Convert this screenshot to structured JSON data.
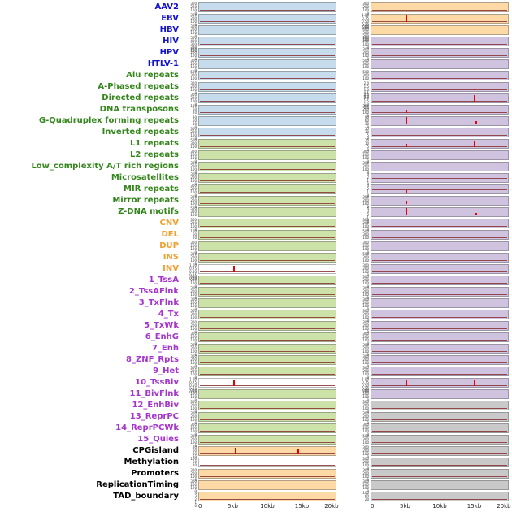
{
  "colors": {
    "label": {
      "blue": "#1414cf",
      "green": "#35871d",
      "orange": "#f09f2e",
      "purple": "#a435cd",
      "black": "#000000"
    },
    "panel": {
      "blue": "#c6dcec",
      "green": "#cde2a9",
      "orange": "#fdd9a6",
      "purple": "#d0c3e0",
      "gray": "#c9c9c9",
      "white": "#ffffff"
    },
    "spike": "#e80000",
    "baseline": "#8a3033"
  },
  "chart_data": {
    "type": "line",
    "title": "",
    "xlabel": "",
    "ylabel": "",
    "x_ticks": [
      "0",
      "5kb",
      "10kb",
      "15kb",
      "20kb"
    ],
    "x_tick_positions": [
      0,
      25,
      50,
      75,
      100
    ],
    "default_yticks": [
      "300",
      "200",
      "100",
      "0"
    ],
    "default_baseline": 0.75,
    "rows": [
      {
        "label": "AAV2",
        "c": "blue",
        "L": {
          "bg": "blue"
        },
        "R": {
          "bg": "orange"
        }
      },
      {
        "label": "EBV",
        "c": "blue",
        "L": {
          "bg": "blue"
        },
        "R": {
          "bg": "orange",
          "yt": [
            "1.00",
            "0.75",
            "0.50",
            "0.25",
            "0.00"
          ],
          "sp": [
            {
              "x": 0.25,
              "h": 0.85
            }
          ]
        }
      },
      {
        "label": "HBV",
        "c": "blue",
        "L": {
          "bg": "blue"
        },
        "R": {
          "bg": "orange",
          "yt": [
            "500",
            "400",
            "300",
            "200",
            "100"
          ]
        }
      },
      {
        "label": "HIV",
        "c": "blue",
        "L": {
          "bg": "blue",
          "yt": [
            "500",
            "400",
            "300",
            "200",
            "100"
          ]
        },
        "R": {
          "bg": "purple"
        }
      },
      {
        "label": "HPV",
        "c": "blue",
        "L": {
          "bg": "blue"
        },
        "R": {
          "bg": "purple"
        }
      },
      {
        "label": "HTLV-1",
        "c": "blue",
        "L": {
          "bg": "blue"
        },
        "R": {
          "bg": "purple",
          "yt": [
            "500",
            "300",
            "100"
          ]
        }
      },
      {
        "label": "Alu repeats",
        "c": "green",
        "L": {
          "bg": "blue",
          "yt": [
            "500",
            "300",
            "100"
          ]
        },
        "R": {
          "bg": "purple",
          "yt": [
            "500",
            "300",
            "100"
          ]
        }
      },
      {
        "label": "A-Phased repeats",
        "c": "green",
        "L": {
          "bg": "blue"
        },
        "R": {
          "bg": "purple",
          "yt": [
            "2.0",
            "1.5",
            "1.0",
            "0.5",
            "0.0"
          ],
          "sp": [
            {
              "x": 0.75,
              "h": 0.25
            }
          ]
        }
      },
      {
        "label": "Directed repeats",
        "c": "green",
        "L": {
          "bg": "blue"
        },
        "R": {
          "bg": "purple",
          "yt": [
            "2.5",
            "2.0",
            "1.5",
            "1.0",
            "0.5"
          ],
          "sp": [
            {
              "x": 0.75,
              "h": 0.9
            }
          ]
        }
      },
      {
        "label": "DNA transposons",
        "c": "green",
        "L": {
          "bg": "blue",
          "yt": [
            "100",
            "60",
            "20"
          ]
        },
        "R": {
          "bg": "purple",
          "sp": [
            {
              "x": 0.25,
              "h": 0.45
            }
          ]
        }
      },
      {
        "label": "G-Quadruplex forming repeats",
        "c": "green",
        "L": {
          "bg": "blue",
          "yt": [
            "90",
            "60",
            "30",
            "0"
          ]
        },
        "R": {
          "bg": "purple",
          "yt": [
            "90",
            "60",
            "30",
            "0"
          ],
          "sp": [
            {
              "x": 0.25,
              "h": 0.95
            },
            {
              "x": 0.76,
              "h": 0.5
            }
          ]
        }
      },
      {
        "label": "Inverted repeats",
        "c": "green",
        "L": {
          "bg": "blue"
        },
        "R": {
          "bg": "purple",
          "yt": [
            "15",
            "10",
            "5",
            "0"
          ]
        }
      },
      {
        "label": "L1 repeats",
        "c": "green",
        "L": {
          "bg": "green",
          "yt": [
            "500",
            "300",
            "100"
          ]
        },
        "R": {
          "bg": "purple",
          "yt": [
            "15",
            "10",
            "5",
            "0"
          ],
          "sp": [
            {
              "x": 0.25,
              "h": 0.5
            },
            {
              "x": 0.75,
              "h": 0.85
            }
          ]
        }
      },
      {
        "label": "L2 repeats",
        "c": "green",
        "L": {
          "bg": "green"
        },
        "R": {
          "bg": "purple"
        }
      },
      {
        "label": "Low_complexity A/T rich regions",
        "c": "green",
        "L": {
          "bg": "green"
        },
        "R": {
          "bg": "purple",
          "bl": 0.45
        }
      },
      {
        "label": "Microsatellites",
        "c": "green",
        "L": {
          "bg": "green"
        },
        "R": {
          "bg": "purple",
          "bl": 0.5,
          "yt": [
            "3",
            "2",
            "1",
            "0"
          ]
        }
      },
      {
        "label": "MIR repeats",
        "c": "green",
        "L": {
          "bg": "green"
        },
        "R": {
          "bg": "purple",
          "bl": 0.5,
          "yt": [
            "3",
            "2",
            "1",
            "0"
          ],
          "sp": [
            {
              "x": 0.25,
              "h": 0.3
            }
          ]
        }
      },
      {
        "label": "Mirror repeats",
        "c": "green",
        "L": {
          "bg": "green"
        },
        "R": {
          "bg": "purple",
          "bl": 0.55,
          "sp": [
            {
              "x": 0.25,
              "h": 0.5
            }
          ]
        }
      },
      {
        "label": "Z-DNA motifs",
        "c": "green",
        "L": {
          "bg": "green",
          "yt": [
            "500",
            "300",
            "100"
          ]
        },
        "R": {
          "bg": "purple",
          "yt": [
            "4",
            "3",
            "2",
            "1",
            "0"
          ],
          "sp": [
            {
              "x": 0.25,
              "h": 0.95
            },
            {
              "x": 0.76,
              "h": 0.3
            }
          ]
        }
      },
      {
        "label": "CNV",
        "c": "orange",
        "L": {
          "bg": "green"
        },
        "R": {
          "bg": "purple"
        }
      },
      {
        "label": "DEL",
        "c": "orange",
        "L": {
          "bg": "green",
          "yt": [
            "100",
            "60",
            "20"
          ]
        },
        "R": {
          "bg": "purple",
          "yt": [
            "500",
            "300",
            "100"
          ]
        }
      },
      {
        "label": "DUP",
        "c": "orange",
        "L": {
          "bg": "green"
        },
        "R": {
          "bg": "purple"
        }
      },
      {
        "label": "INS",
        "c": "orange",
        "L": {
          "bg": "green"
        },
        "R": {
          "bg": "purple",
          "yt": [
            "500",
            "300",
            "100"
          ]
        }
      },
      {
        "label": "INV",
        "c": "orange",
        "L": {
          "bg": "white",
          "yt": [
            "1.00",
            "0.75",
            "0.50",
            "0.25",
            "0.00"
          ],
          "sp": [
            {
              "x": 0.25,
              "h": 0.9
            }
          ]
        },
        "R": {
          "bg": "purple",
          "yt": [
            "300",
            "200",
            "100",
            "0"
          ]
        }
      },
      {
        "label": "1_TssA",
        "c": "purple",
        "L": {
          "bg": "green"
        },
        "R": {
          "bg": "purple"
        }
      },
      {
        "label": "2_TssAFlnk",
        "c": "purple",
        "L": {
          "bg": "green"
        },
        "R": {
          "bg": "purple"
        }
      },
      {
        "label": "3_TxFlnk",
        "c": "purple",
        "L": {
          "bg": "green"
        },
        "R": {
          "bg": "purple"
        }
      },
      {
        "label": "4_Tx",
        "c": "purple",
        "L": {
          "bg": "green",
          "yt": [
            "500",
            "300",
            "100"
          ]
        },
        "R": {
          "bg": "purple"
        }
      },
      {
        "label": "5_TxWk",
        "c": "purple",
        "L": {
          "bg": "green"
        },
        "R": {
          "bg": "purple"
        }
      },
      {
        "label": "6_EnhG",
        "c": "purple",
        "L": {
          "bg": "green"
        },
        "R": {
          "bg": "purple"
        }
      },
      {
        "label": "7_Enh",
        "c": "purple",
        "L": {
          "bg": "green"
        },
        "R": {
          "bg": "purple"
        }
      },
      {
        "label": "8_ZNF_Rpts",
        "c": "purple",
        "L": {
          "bg": "green"
        },
        "R": {
          "bg": "purple"
        }
      },
      {
        "label": "9_Het",
        "c": "purple",
        "L": {
          "bg": "green"
        },
        "R": {
          "bg": "purple"
        }
      },
      {
        "label": "10_TssBiv",
        "c": "purple",
        "L": {
          "bg": "white",
          "yt": [
            "1.00",
            "0.75",
            "0.50",
            "0.25",
            "0.00"
          ],
          "sp": [
            {
              "x": 0.25,
              "h": 0.9
            }
          ]
        },
        "R": {
          "bg": "purple",
          "yt": [
            "1.00",
            "0.75",
            "0.50",
            "0.25",
            "0.00"
          ],
          "sp": [
            {
              "x": 0.25,
              "h": 0.85
            },
            {
              "x": 0.75,
              "h": 0.8
            }
          ]
        }
      },
      {
        "label": "11_BivFlnk",
        "c": "purple",
        "L": {
          "bg": "green"
        },
        "R": {
          "bg": "purple"
        }
      },
      {
        "label": "12_EnhBiv",
        "c": "purple",
        "L": {
          "bg": "green"
        },
        "R": {
          "bg": "gray"
        }
      },
      {
        "label": "13_ReprPC",
        "c": "purple",
        "L": {
          "bg": "green"
        },
        "R": {
          "bg": "gray"
        }
      },
      {
        "label": "14_ReprPCWk",
        "c": "purple",
        "L": {
          "bg": "green"
        },
        "R": {
          "bg": "gray"
        }
      },
      {
        "label": "15_Quies",
        "c": "purple",
        "L": {
          "bg": "green"
        },
        "R": {
          "bg": "gray",
          "yt": [
            "500",
            "300",
            "100"
          ]
        }
      },
      {
        "label": "CPGisland",
        "c": "black",
        "L": {
          "bg": "orange",
          "yt": [
            "80",
            "60",
            "40",
            "20"
          ],
          "sp": [
            {
              "x": 0.26,
              "h": 0.85
            },
            {
              "x": 0.72,
              "h": 0.8
            }
          ]
        },
        "R": {
          "bg": "gray",
          "yt": [
            "300",
            "200",
            "100",
            "0"
          ]
        }
      },
      {
        "label": "Methylation",
        "c": "black",
        "L": {
          "bg": "white",
          "yt": [
            "100",
            "60",
            "20"
          ]
        },
        "R": {
          "bg": "gray"
        }
      },
      {
        "label": "Promoters",
        "c": "black",
        "L": {
          "bg": "orange",
          "yt": [
            "300",
            "200",
            "100",
            "0"
          ]
        },
        "R": {
          "bg": "gray"
        }
      },
      {
        "label": "ReplicationTiming",
        "c": "black",
        "L": {
          "bg": "orange"
        },
        "R": {
          "bg": "gray"
        }
      },
      {
        "label": "TAD_boundary",
        "c": "black",
        "L": {
          "bg": "orange",
          "yt": [
            "4",
            "3",
            "2",
            "1",
            "0"
          ]
        },
        "R": {
          "bg": "gray",
          "yt": [
            "100",
            "60",
            "20"
          ]
        }
      }
    ]
  }
}
